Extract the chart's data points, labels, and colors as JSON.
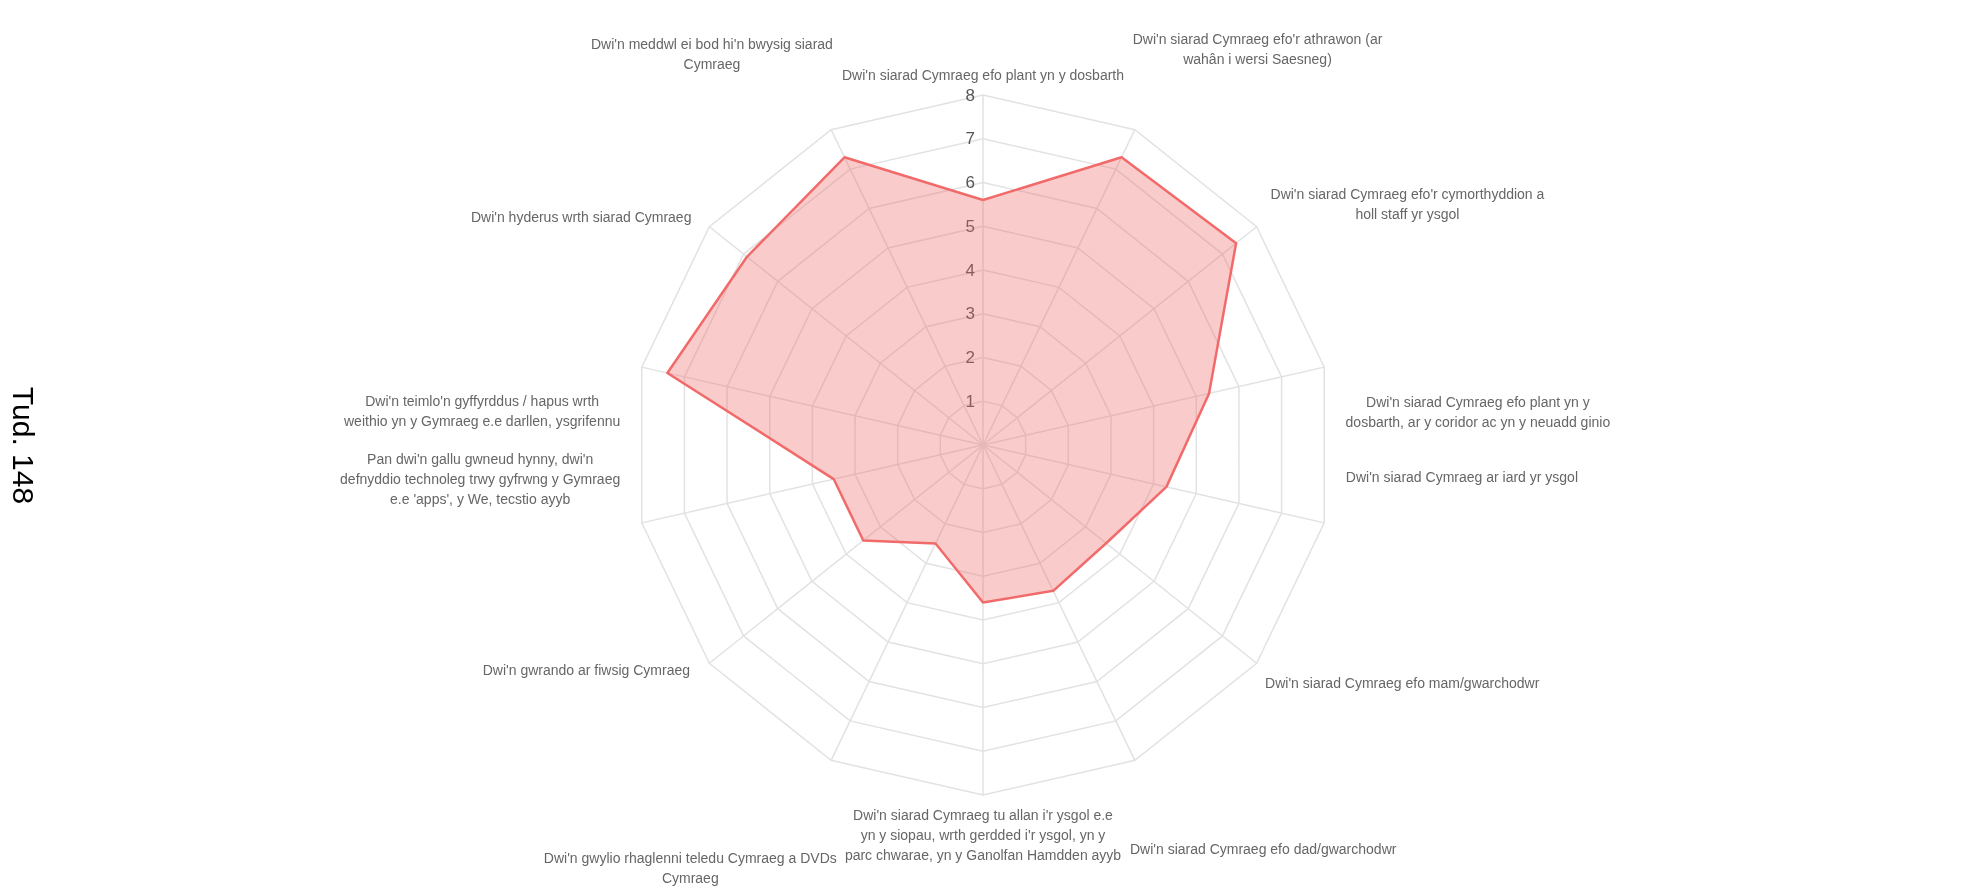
{
  "chart_data": {
    "type": "radar",
    "categories": [
      "Dwi'n siarad Cymraeg efo plant yn y dosbarth",
      "Dwi'n siarad Cymraeg efo'r athrawon (ar wahân i wersi Saesneg)",
      "Dwi'n siarad Cymraeg efo'r cymorthyddion a holl staff yr ysgol",
      "Dwi'n siarad Cymraeg efo plant yn y dosbarth, ar y coridor ac yn y neuadd ginio",
      "Dwi'n siarad Cymraeg ar iard yr ysgol",
      "Dwi'n siarad Cymraeg efo mam/gwarchodwr",
      "Dwi'n siarad Cymraeg efo dad/gwarchodwr",
      "Dwi'n siarad Cymraeg tu allan i'r ysgol e.e yn y siopau, wrth gerdded i'r ysgol, yn y parc chwarae, yn y Ganolfan Hamdden ayyb",
      "Dwi'n gwylio rhaglenni teledu Cymraeg a DVDs Cymraeg",
      "Dwi'n gwrando ar fiwsig Cymraeg",
      "Pan dwi'n gallu gwneud hynny, dwi'n defnyddio technoleg trwy gyfrwng y Gymraeg e.e 'apps', y We, tecstio ayyb",
      "Dwi'n teimlo'n gyffyrddus / hapus wrth weithio yn y Gymraeg e.e darllen, ysgrifennu",
      "Dwi'n hyderus wrth siarad Cymraeg",
      "Dwi'n meddwl ei bod hi'n bwysig siarad Cymraeg"
    ],
    "series": [
      {
        "color": "#f26b6b",
        "values": [
          5.6,
          7.3,
          7.4,
          5.3,
          4.3,
          3.6,
          3.7,
          3.6,
          2.5,
          3.5,
          3.5,
          7.4,
          6.9,
          7.3
        ]
      }
    ],
    "ylim": [
      0,
      8
    ],
    "yticks": [
      1,
      2,
      3,
      4,
      5,
      6,
      7,
      8
    ],
    "grid": true,
    "marker": "none",
    "annotations": [
      "Tud. 148"
    ]
  }
}
